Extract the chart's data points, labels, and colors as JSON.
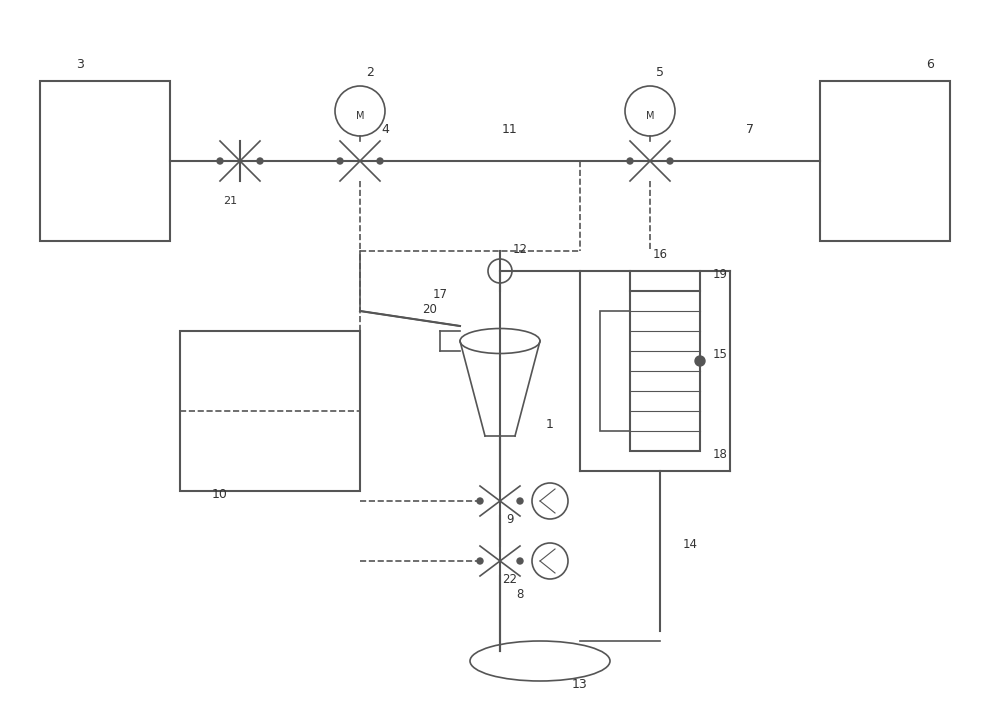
{
  "bg_color": "#ffffff",
  "line_color": "#555555",
  "label_color": "#333333",
  "fig_width": 10.0,
  "fig_height": 7.11,
  "dpi": 100
}
